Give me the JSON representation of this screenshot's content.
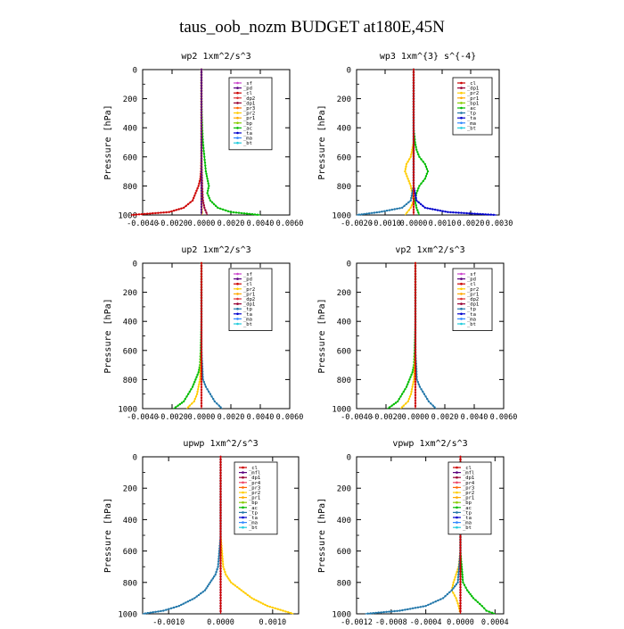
{
  "page_title": "taus_oob_nozm  BUDGET at180E,45N",
  "chart_data": [
    {
      "type": "line",
      "title": "wp2   1xm^2/s^3",
      "ylabel": "Pressure [hPa]",
      "ylim": [
        1000,
        0
      ],
      "xlim": [
        -0.004,
        0.006
      ],
      "xticks": [
        "-0.0040",
        "-0.0020",
        "0.0000",
        "0.0020",
        "0.0040",
        "0.0060"
      ],
      "yticks": [
        "0",
        "200",
        "400",
        "600",
        "800",
        "1000"
      ],
      "legend": [
        "_sf",
        "_pd",
        "_cl",
        "_dp2",
        "_dp1",
        "_pr3",
        "_pr2",
        "_pr1",
        "_bp",
        "_ac",
        "_ta",
        "_ma",
        "_bt"
      ],
      "series": [
        {
          "name": "_cl",
          "color": "#cc0000",
          "pressure": [
            0,
            200,
            400,
            500,
            600,
            700,
            750,
            800,
            850,
            900,
            950,
            980,
            1000
          ],
          "values": [
            0,
            0,
            0,
            0,
            0,
            -3e-05,
            -8e-05,
            -0.0002,
            -0.0004,
            -0.0006,
            -0.0012,
            -0.0022,
            -0.0048
          ]
        },
        {
          "name": "_ac",
          "color": "#00bb00",
          "pressure": [
            0,
            200,
            400,
            500,
            600,
            700,
            750,
            800,
            850,
            900,
            950,
            980,
            1000
          ],
          "values": [
            0,
            0,
            5e-05,
            0.0001,
            0.0002,
            0.0003,
            0.0004,
            0.0005,
            0.0004,
            0.0006,
            0.0011,
            0.002,
            0.004
          ]
        },
        {
          "name": "_dp1",
          "color": "#990033",
          "pressure": [
            0,
            200,
            400,
            600,
            800,
            900,
            950,
            1000
          ],
          "values": [
            0,
            0,
            0,
            0,
            5e-05,
            0.0001,
            0.0002,
            0.0004
          ]
        },
        {
          "name": "_pr1",
          "color": "#ffcc00",
          "pressure": [
            0,
            400,
            800,
            900,
            1000
          ],
          "values": [
            0,
            0,
            0,
            0,
            5e-05
          ]
        },
        {
          "name": "_pd",
          "color": "#5b007f",
          "pressure": [
            0,
            1000
          ],
          "values": [
            0,
            0
          ]
        }
      ]
    },
    {
      "type": "line",
      "title": "wp3   1xm^{3} s^{-4}",
      "ylabel": "Pressure [hPa]",
      "ylim": [
        1000,
        0
      ],
      "xlim": [
        -0.002,
        0.003
      ],
      "xticks": [
        "-0.0020",
        "-0.0010",
        "0.0000",
        "0.0010",
        "0.0020",
        "0.0030"
      ],
      "yticks": [
        "0",
        "200",
        "400",
        "600",
        "800",
        "1000"
      ],
      "legend": [
        "_cl",
        "_dp1",
        "_pr2",
        "_pr1",
        "_bp1",
        "_ac",
        "_tp",
        "_ta",
        "_ma",
        "_bt"
      ],
      "series": [
        {
          "name": "_pr2",
          "color": "#ffcc00",
          "pressure": [
            0,
            400,
            500,
            550,
            600,
            650,
            700,
            750,
            800,
            850,
            900,
            950,
            1000
          ],
          "values": [
            0,
            0,
            0,
            -5e-05,
            -0.0001,
            -0.00025,
            -0.0003,
            -0.0002,
            -0.0001,
            -5e-05,
            0,
            -0.0001,
            -0.0003
          ]
        },
        {
          "name": "_ac",
          "color": "#00bb00",
          "pressure": [
            0,
            400,
            500,
            550,
            600,
            650,
            700,
            750,
            800,
            850,
            900,
            950,
            1000
          ],
          "values": [
            0,
            0,
            5e-05,
            0.0001,
            0.0002,
            0.0004,
            0.0005,
            0.0004,
            0.0002,
            0.0001,
            5e-05,
            0.0001,
            0.0002
          ]
        },
        {
          "name": "_ta",
          "color": "#0000cc",
          "pressure": [
            0,
            600,
            800,
            900,
            950,
            980,
            1000
          ],
          "values": [
            0,
            0,
            0,
            0.0001,
            0.0004,
            0.0012,
            0.0029
          ]
        },
        {
          "name": "_tp",
          "color": "#2277aa",
          "pressure": [
            0,
            600,
            800,
            900,
            950,
            980,
            1000
          ],
          "values": [
            0,
            0,
            0,
            -0.0001,
            -0.0004,
            -0.0012,
            -0.002
          ]
        },
        {
          "name": "_cl",
          "color": "#cc0000",
          "pressure": [
            0,
            1000
          ],
          "values": [
            0,
            0
          ]
        }
      ]
    },
    {
      "type": "line",
      "title": "up2   1xm^2/s^3",
      "ylabel": "Pressure [hPa]",
      "ylim": [
        1000,
        0
      ],
      "xlim": [
        -0.004,
        0.006
      ],
      "xticks": [
        "-0.0040",
        "-0.0020",
        "0.0000",
        "0.0020",
        "0.0040",
        "0.0060"
      ],
      "yticks": [
        "0",
        "200",
        "400",
        "600",
        "800",
        "1000"
      ],
      "legend": [
        "_sf",
        "_pd",
        "_cl",
        "_pr2",
        "_pr1",
        "_dp2",
        "_dp1",
        "_tp",
        "_ta",
        "_ma",
        "_bt"
      ],
      "series": [
        {
          "name": "_dp2",
          "color": "#00bb00",
          "pressure": [
            0,
            400,
            600,
            700,
            750,
            800,
            850,
            900,
            950,
            980,
            1000
          ],
          "values": [
            0,
            0,
            -5e-05,
            -0.0001,
            -0.0002,
            -0.0004,
            -0.0006,
            -0.0009,
            -0.0012,
            -0.0016,
            -0.0019
          ]
        },
        {
          "name": "_pr2",
          "color": "#ffcc00",
          "pressure": [
            0,
            600,
            800,
            850,
            900,
            950,
            980,
            1000
          ],
          "values": [
            0,
            0,
            -0.0001,
            -0.0002,
            -0.0003,
            -0.0005,
            -0.0008,
            -0.001
          ]
        },
        {
          "name": "_tp",
          "color": "#2277aa",
          "pressure": [
            0,
            600,
            800,
            850,
            900,
            950,
            980,
            1000
          ],
          "values": [
            0,
            0,
            0.0001,
            0.0003,
            0.0006,
            0.0009,
            0.0012,
            0.0014
          ]
        },
        {
          "name": "_cl",
          "color": "#cc0000",
          "pressure": [
            0,
            1000
          ],
          "values": [
            0,
            0
          ]
        }
      ]
    },
    {
      "type": "line",
      "title": "vp2   1xm^2/s^3",
      "ylabel": "Pressure [hPa]",
      "ylim": [
        1000,
        0
      ],
      "xlim": [
        -0.004,
        0.006
      ],
      "xticks": [
        "-0.0040",
        "-0.0020",
        "0.0000",
        "0.0020",
        "0.0040",
        "0.0060"
      ],
      "yticks": [
        "0",
        "200",
        "400",
        "600",
        "800",
        "1000"
      ],
      "legend": [
        "_sf",
        "_pd",
        "_cl",
        "_pr2",
        "_pr1",
        "_dp2",
        "_dp1",
        "_tp",
        "_ta",
        "_ma",
        "_bt"
      ],
      "series": [
        {
          "name": "_dp2",
          "color": "#00bb00",
          "pressure": [
            0,
            400,
            600,
            700,
            750,
            800,
            850,
            900,
            950,
            980,
            1000
          ],
          "values": [
            0,
            0,
            -5e-05,
            -0.0001,
            -0.0002,
            -0.0004,
            -0.0006,
            -0.0009,
            -0.0012,
            -0.0016,
            -0.0019
          ]
        },
        {
          "name": "_pr2",
          "color": "#ffcc00",
          "pressure": [
            0,
            600,
            800,
            850,
            900,
            950,
            980,
            1000
          ],
          "values": [
            0,
            0,
            -0.0001,
            -0.0002,
            -0.0003,
            -0.0005,
            -0.0008,
            -0.001
          ]
        },
        {
          "name": "_tp",
          "color": "#2277aa",
          "pressure": [
            0,
            600,
            800,
            850,
            900,
            950,
            980,
            1000
          ],
          "values": [
            0,
            0,
            0.0001,
            0.0003,
            0.0006,
            0.0009,
            0.0012,
            0.0014
          ]
        },
        {
          "name": "_cl",
          "color": "#cc0000",
          "pressure": [
            0,
            1000
          ],
          "values": [
            0,
            0
          ]
        }
      ]
    },
    {
      "type": "line",
      "title": "upwp   1xm^2/s^3",
      "ylabel": "Pressure [hPa]",
      "ylim": [
        1000,
        0
      ],
      "xlim": [
        -0.0015,
        0.0015
      ],
      "xticks": [
        "-0.0010",
        "0.0000",
        "0.0010"
      ],
      "yticks": [
        "0",
        "200",
        "400",
        "600",
        "800",
        "1000"
      ],
      "legend": [
        "_cl",
        "_mfl",
        "_dp1",
        "_pr4",
        "_pr3",
        "_pr2",
        "_pr1",
        "_bp",
        "_ac",
        "_tp",
        "_ta",
        "_ma",
        "_bt"
      ],
      "series": [
        {
          "name": "_pr1",
          "color": "#ffcc00",
          "pressure": [
            0,
            500,
            700,
            750,
            800,
            850,
            900,
            950,
            980,
            1000
          ],
          "values": [
            0,
            0,
            5e-05,
            0.0001,
            0.0002,
            0.0004,
            0.0006,
            0.0009,
            0.0012,
            0.0014
          ]
        },
        {
          "name": "_tp",
          "color": "#2277aa",
          "pressure": [
            0,
            500,
            700,
            750,
            800,
            850,
            900,
            950,
            980,
            1000
          ],
          "values": [
            0,
            0,
            -5e-05,
            -0.0001,
            -0.0002,
            -0.0003,
            -0.0005,
            -0.0008,
            -0.0011,
            -0.0015
          ]
        },
        {
          "name": "_mfl",
          "color": "#5b007f",
          "pressure": [
            0,
            1000
          ],
          "values": [
            0,
            0
          ]
        },
        {
          "name": "_cl",
          "color": "#cc0000",
          "pressure": [
            0,
            1000
          ],
          "values": [
            0,
            0
          ]
        }
      ]
    },
    {
      "type": "line",
      "title": "vpwp   1xm^2/s^3",
      "ylabel": "Pressure [hPa]",
      "ylim": [
        1000,
        0
      ],
      "xlim": [
        -0.0012,
        0.0005
      ],
      "xticks": [
        "-0.0012",
        "-0.0008",
        "-0.0004",
        "0.0000",
        "0.0004"
      ],
      "yticks": [
        "0",
        "200",
        "400",
        "600",
        "800",
        "1000"
      ],
      "legend": [
        "_cl",
        "_mfl",
        "_dp1",
        "_pr4",
        "_pr3",
        "_pr2",
        "_pr1",
        "_bp",
        "_ac",
        "_tp",
        "_ta",
        "_ma",
        "_bt"
      ],
      "series": [
        {
          "name": "_pr1",
          "color": "#ffcc00",
          "pressure": [
            0,
            600,
            700,
            750,
            800,
            850,
            900,
            950,
            1000
          ],
          "values": [
            0,
            0,
            -2e-05,
            -5e-05,
            -8e-05,
            -0.0001,
            -5e-05,
            -2e-05,
            0
          ]
        },
        {
          "name": "_ac",
          "color": "#00bb00",
          "pressure": [
            0,
            600,
            800,
            850,
            900,
            950,
            980,
            1000
          ],
          "values": [
            0,
            0,
            3e-05,
            8e-05,
            0.00015,
            0.00025,
            0.0003,
            0.0004
          ]
        },
        {
          "name": "_tp",
          "color": "#2277aa",
          "pressure": [
            0,
            600,
            800,
            850,
            900,
            950,
            980,
            1000
          ],
          "values": [
            0,
            0,
            -3e-05,
            -0.0001,
            -0.0002,
            -0.0004,
            -0.0007,
            -0.0011
          ]
        },
        {
          "name": "_mfl",
          "color": "#5b007f",
          "pressure": [
            0,
            1000
          ],
          "values": [
            0,
            0
          ]
        },
        {
          "name": "_cl",
          "color": "#cc0000",
          "pressure": [
            0,
            1000
          ],
          "values": [
            0,
            0
          ]
        }
      ]
    }
  ],
  "legend_colors": {
    "_sf": "#cc44cc",
    "_pd": "#5b007f",
    "_cl": "#cc0000",
    "_mfl": "#5b007f",
    "_dp2": "#dd3333",
    "_dp1": "#990033",
    "_pr4": "#ee4466",
    "_pr3": "#ff6600",
    "_pr2": "#ffcc00",
    "_pr1": "#ffaa00",
    "_bp": "#88cc00",
    "_bp1": "#88cc00",
    "_ac": "#00bb00",
    "_tp": "#2277aa",
    "_ta": "#0000cc",
    "_ma": "#3388ff",
    "_bt": "#22ccdd"
  }
}
